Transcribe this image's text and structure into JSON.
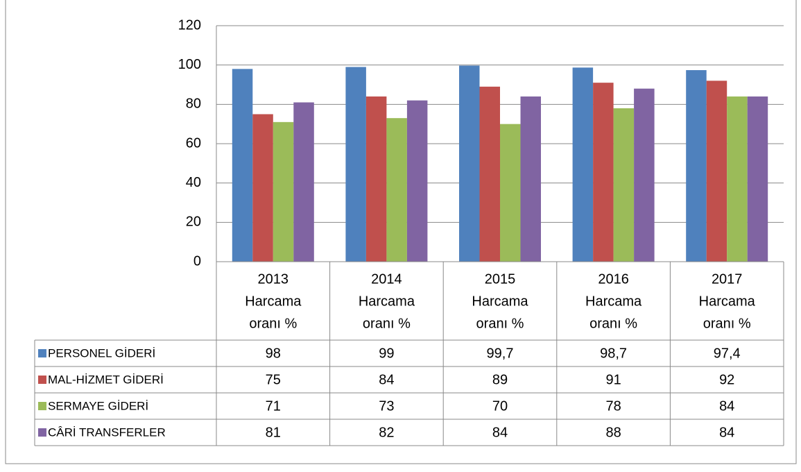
{
  "chart_data": {
    "type": "bar",
    "categories": [
      [
        "2013",
        "Harcama",
        "oranı %"
      ],
      [
        "2014",
        "Harcama",
        "oranı %"
      ],
      [
        "2015",
        "Harcama",
        "oranı %"
      ],
      [
        "2016",
        "Harcama",
        "oranı %"
      ],
      [
        "2017",
        "Harcama",
        "oranı %"
      ]
    ],
    "series": [
      {
        "name": "PERSONEL GİDERİ",
        "color": "#4f81bd",
        "values": [
          98,
          99,
          99.7,
          98.7,
          97.4
        ],
        "value_labels": [
          "98",
          "99",
          "99,7",
          "98,7",
          "97,4"
        ]
      },
      {
        "name": "MAL-HİZMET GİDERİ",
        "color": "#c0504d",
        "values": [
          75,
          84,
          89,
          91,
          92
        ]
      },
      {
        "name": "SERMAYE GİDERİ",
        "color": "#9bbb59",
        "values": [
          71,
          73,
          70,
          78,
          84
        ]
      },
      {
        "name": "CÂRİ TRANSFERLER",
        "color": "#8064a2",
        "values": [
          81,
          82,
          84,
          88,
          84
        ]
      }
    ],
    "ylim": [
      0,
      120
    ],
    "yticks": [
      0,
      20,
      40,
      60,
      80,
      100,
      120
    ],
    "grid": true
  }
}
